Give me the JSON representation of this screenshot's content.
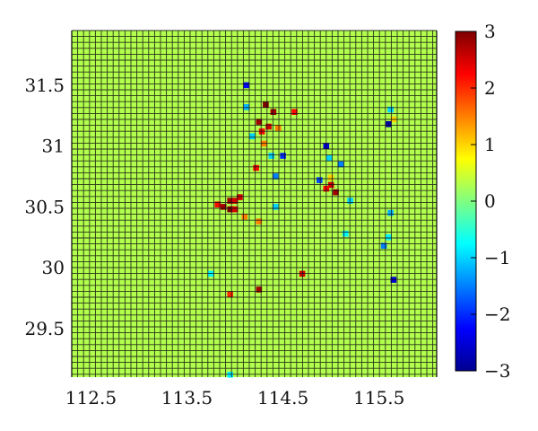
{
  "chart_data": {
    "type": "heatmap",
    "title": "",
    "xlabel": "",
    "ylabel": "",
    "xlim": [
      112.3,
      116.1
    ],
    "ylim": [
      29.1,
      31.95
    ],
    "x_ticks": [
      "112.5",
      "113.5",
      "114.5",
      "115.5"
    ],
    "y_ticks": [
      "29.5",
      "30",
      "30.5",
      "31",
      "31.5"
    ],
    "colorbar": {
      "range": [
        -3,
        3
      ],
      "ticks": [
        "3",
        "2",
        "1",
        "0",
        "−1",
        "−2",
        "−3"
      ],
      "colormap": "jet"
    },
    "background_value": 0.3,
    "grid_lines": true,
    "anomalies": [
      {
        "lon": 114.12,
        "lat": 31.5,
        "value": -2.2
      },
      {
        "lon": 114.32,
        "lat": 31.34,
        "value": 3.0
      },
      {
        "lon": 114.4,
        "lat": 31.28,
        "value": 2.8
      },
      {
        "lon": 114.25,
        "lat": 31.2,
        "value": 2.8
      },
      {
        "lon": 114.35,
        "lat": 31.16,
        "value": 2.5
      },
      {
        "lon": 114.28,
        "lat": 31.12,
        "value": 2.2
      },
      {
        "lon": 114.45,
        "lat": 31.15,
        "value": 1.5
      },
      {
        "lon": 114.18,
        "lat": 31.08,
        "value": -1.0
      },
      {
        "lon": 114.62,
        "lat": 31.28,
        "value": 2.2
      },
      {
        "lon": 114.12,
        "lat": 31.32,
        "value": -1.2
      },
      {
        "lon": 114.3,
        "lat": 31.02,
        "value": 1.5
      },
      {
        "lon": 114.5,
        "lat": 30.92,
        "value": -2.0
      },
      {
        "lon": 114.22,
        "lat": 30.82,
        "value": 2.2
      },
      {
        "lon": 114.42,
        "lat": 30.75,
        "value": -1.5
      },
      {
        "lon": 114.38,
        "lat": 30.92,
        "value": -1.0
      },
      {
        "lon": 114.95,
        "lat": 31.0,
        "value": -2.5
      },
      {
        "lon": 114.98,
        "lat": 30.9,
        "value": -1.0
      },
      {
        "lon": 115.1,
        "lat": 30.85,
        "value": -1.5
      },
      {
        "lon": 114.88,
        "lat": 30.72,
        "value": -1.8
      },
      {
        "lon": 115.0,
        "lat": 30.74,
        "value": 1.0
      },
      {
        "lon": 115.0,
        "lat": 30.68,
        "value": 2.5
      },
      {
        "lon": 115.05,
        "lat": 30.62,
        "value": 2.8
      },
      {
        "lon": 114.95,
        "lat": 30.65,
        "value": 2.2
      },
      {
        "lon": 115.2,
        "lat": 30.55,
        "value": -1.0
      },
      {
        "lon": 115.15,
        "lat": 30.28,
        "value": -0.8
      },
      {
        "lon": 115.62,
        "lat": 30.45,
        "value": -1.2
      },
      {
        "lon": 115.6,
        "lat": 30.25,
        "value": -0.8
      },
      {
        "lon": 115.55,
        "lat": 30.18,
        "value": -1.5
      },
      {
        "lon": 115.65,
        "lat": 29.9,
        "value": -2.5
      },
      {
        "lon": 115.62,
        "lat": 31.3,
        "value": -1.0
      },
      {
        "lon": 115.65,
        "lat": 31.22,
        "value": 1.0
      },
      {
        "lon": 115.6,
        "lat": 31.18,
        "value": -2.8
      },
      {
        "lon": 113.95,
        "lat": 30.55,
        "value": 2.8
      },
      {
        "lon": 114.0,
        "lat": 30.55,
        "value": 2.5
      },
      {
        "lon": 114.05,
        "lat": 30.58,
        "value": 2.5
      },
      {
        "lon": 113.95,
        "lat": 30.48,
        "value": 3.0
      },
      {
        "lon": 114.0,
        "lat": 30.48,
        "value": 2.5
      },
      {
        "lon": 113.88,
        "lat": 30.5,
        "value": 2.8
      },
      {
        "lon": 113.82,
        "lat": 30.52,
        "value": 2.2
      },
      {
        "lon": 114.1,
        "lat": 30.42,
        "value": 1.5
      },
      {
        "lon": 114.25,
        "lat": 30.38,
        "value": 1.5
      },
      {
        "lon": 114.42,
        "lat": 30.5,
        "value": -1.0
      },
      {
        "lon": 114.7,
        "lat": 29.95,
        "value": 2.5
      },
      {
        "lon": 114.25,
        "lat": 29.82,
        "value": 2.8
      },
      {
        "lon": 113.75,
        "lat": 29.95,
        "value": -0.8
      },
      {
        "lon": 113.95,
        "lat": 29.78,
        "value": 2.0
      },
      {
        "lon": 113.95,
        "lat": 29.12,
        "value": -0.8
      }
    ]
  }
}
